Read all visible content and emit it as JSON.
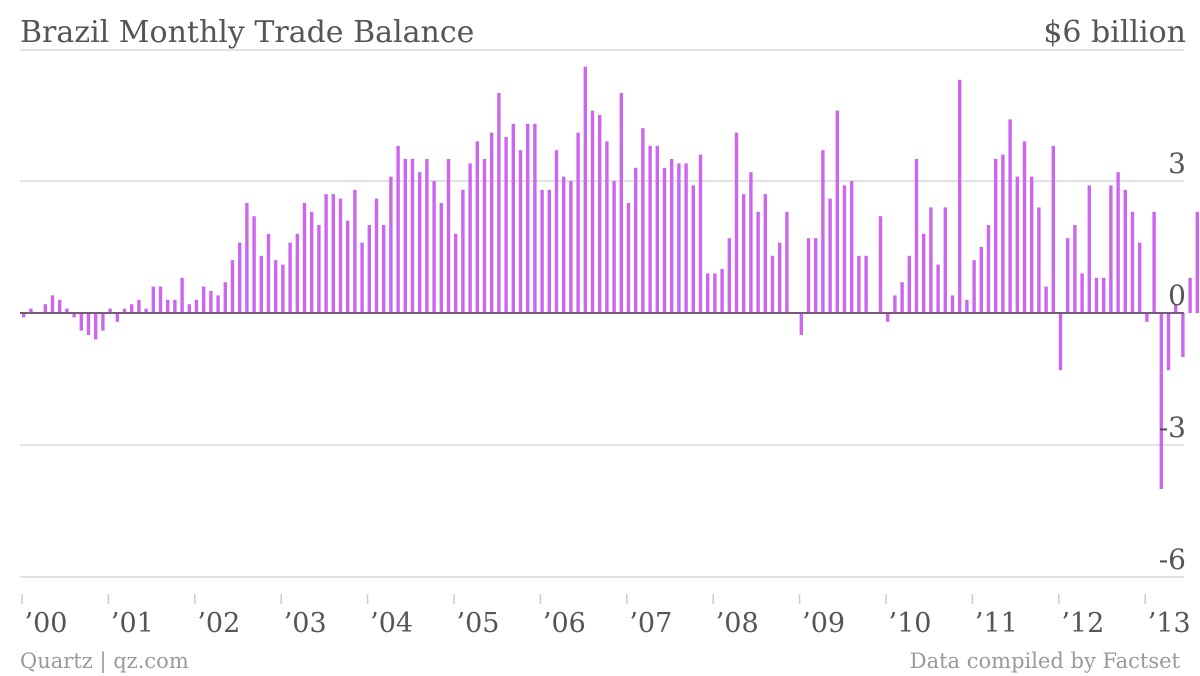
{
  "chart_data": {
    "type": "bar",
    "title": "Brazil Monthly Trade Balance",
    "unit_label": "$6 billion",
    "ylim": [
      -6,
      6
    ],
    "y_ticks": [
      {
        "value": 3,
        "label": "3"
      },
      {
        "value": 0,
        "label": "0"
      },
      {
        "value": -3,
        "label": "-3"
      },
      {
        "value": -6,
        "label": "-6"
      }
    ],
    "x_ticks": [
      "’00",
      "’01",
      "’02",
      "’03",
      "’04",
      "’05",
      "’06",
      "’07",
      "’08",
      "’09",
      "’10",
      "’11",
      "’12",
      "’13"
    ],
    "x_start": "2000-01",
    "grid": true,
    "color": "#cc66ee",
    "values": [
      -0.1,
      0.1,
      0.0,
      0.2,
      0.4,
      0.3,
      0.1,
      -0.1,
      -0.4,
      -0.5,
      -0.6,
      -0.4,
      0.1,
      -0.2,
      0.1,
      0.2,
      0.3,
      0.1,
      0.6,
      0.6,
      0.3,
      0.3,
      0.8,
      0.2,
      0.3,
      0.6,
      0.5,
      0.4,
      0.7,
      1.2,
      1.6,
      2.5,
      2.2,
      1.3,
      1.8,
      1.2,
      1.1,
      1.6,
      1.8,
      2.5,
      2.3,
      2.0,
      2.7,
      2.7,
      2.6,
      2.1,
      2.8,
      1.6,
      2.0,
      2.6,
      2.0,
      3.1,
      3.8,
      3.5,
      3.5,
      3.2,
      3.5,
      3.0,
      2.5,
      3.5,
      1.8,
      2.8,
      3.4,
      3.9,
      3.5,
      4.1,
      5.0,
      4.0,
      4.3,
      3.7,
      4.3,
      4.3,
      2.8,
      2.8,
      3.7,
      3.1,
      3.0,
      4.1,
      5.6,
      4.6,
      4.5,
      3.9,
      3.0,
      5.0,
      2.5,
      3.3,
      4.2,
      3.8,
      3.8,
      3.3,
      3.5,
      3.4,
      3.4,
      2.9,
      3.6,
      0.9,
      0.9,
      1.0,
      1.7,
      4.1,
      2.7,
      3.2,
      2.3,
      2.7,
      1.3,
      1.6,
      2.3,
      0.0,
      -0.5,
      1.7,
      1.7,
      3.7,
      2.6,
      4.6,
      2.9,
      3.0,
      1.3,
      1.3,
      0.0,
      2.2,
      -0.2,
      0.4,
      0.7,
      1.3,
      3.5,
      1.8,
      2.4,
      1.1,
      2.4,
      0.4,
      5.3,
      0.3,
      1.2,
      1.5,
      2.0,
      3.5,
      3.6,
      4.4,
      3.1,
      3.9,
      3.1,
      2.4,
      0.6,
      3.8,
      -1.3,
      1.7,
      2.0,
      0.9,
      2.9,
      0.8,
      0.8,
      2.9,
      3.2,
      2.8,
      2.3,
      1.6,
      -0.2,
      2.3,
      -4.0,
      -1.3,
      0.2,
      -1.0,
      0.8,
      2.3
    ]
  },
  "footer": {
    "source_left": "Quartz | qz.com",
    "source_right": "Data compiled by Factset"
  }
}
